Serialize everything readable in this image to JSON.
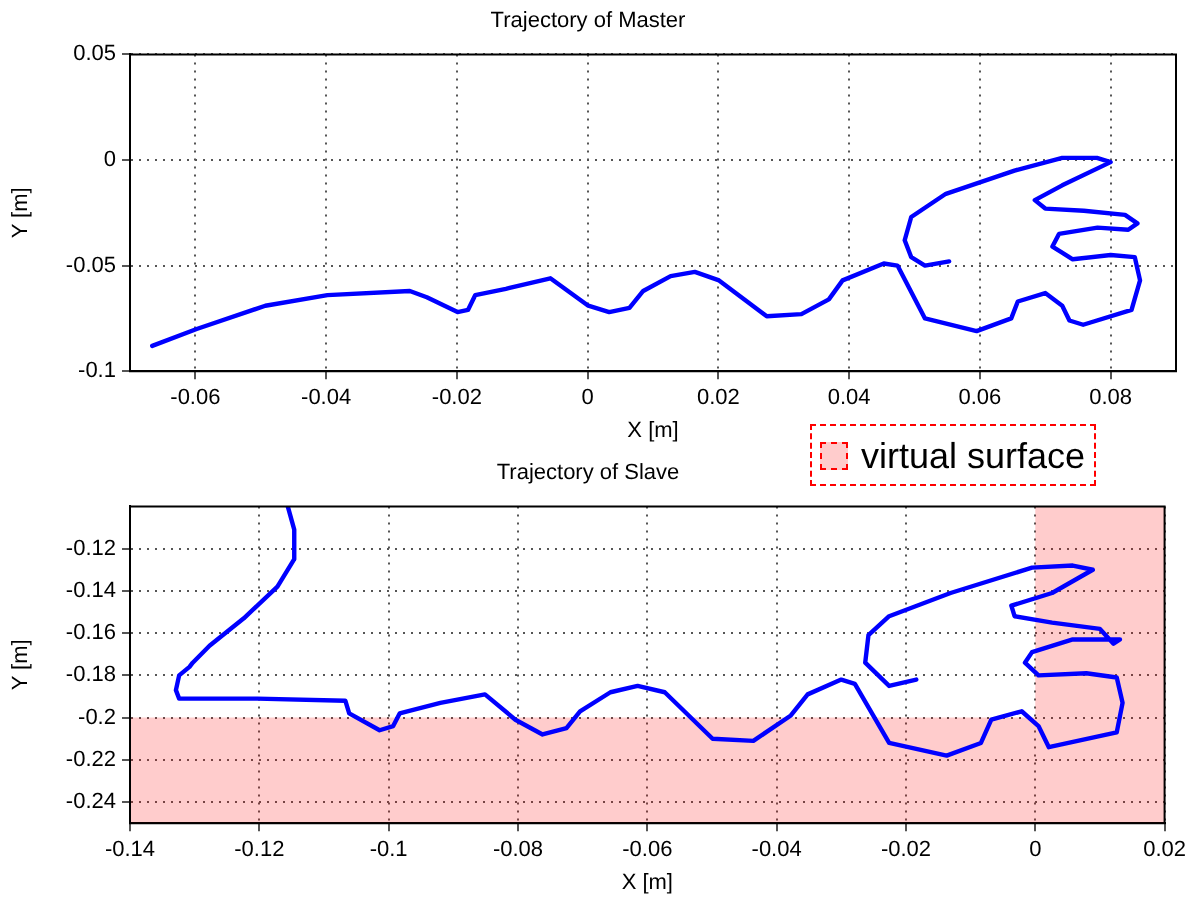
{
  "chart_data": [
    {
      "type": "line",
      "title": "Trajectory of Master",
      "xlabel": "X [m]",
      "ylabel": "Y [m]",
      "xlim": [
        -0.07,
        0.09
      ],
      "ylim": [
        -0.1,
        0.05
      ],
      "xticks": [
        -0.06,
        -0.04,
        -0.02,
        0,
        0.02,
        0.04,
        0.06,
        0.08
      ],
      "yticks": [
        -0.1,
        -0.05,
        0,
        0.05
      ],
      "grid": true,
      "marker": "none",
      "line_style": "solid",
      "series": [
        {
          "color": "#0000ff",
          "x": [
            -0.0666,
            -0.0598,
            -0.0493,
            -0.0398,
            -0.0272,
            -0.0246,
            -0.0199,
            -0.0183,
            -0.0172,
            -0.0125,
            -0.0057,
            0.0001,
            0.0033,
            0.0064,
            0.0085,
            0.0127,
            0.0164,
            0.0201,
            0.0274,
            0.0327,
            0.0369,
            0.039,
            0.0453,
            0.0474,
            0.0516,
            0.0595,
            0.0648,
            0.0658,
            0.07,
            0.0726,
            0.0737,
            0.0758,
            0.0832,
            0.0845,
            0.0837,
            0.08,
            0.0742,
            0.0711,
            0.0721,
            0.078,
            0.0827,
            0.0841,
            0.0822,
            0.0759,
            0.07,
            0.0684,
            0.0726,
            0.08,
            0.0779,
            0.0726,
            0.0653,
            0.0548,
            0.0495,
            0.0485,
            0.0495,
            0.0516,
            0.0553
          ],
          "values": [
            -0.088,
            -0.08,
            -0.069,
            -0.064,
            -0.062,
            -0.065,
            -0.072,
            -0.071,
            -0.064,
            -0.061,
            -0.056,
            -0.069,
            -0.072,
            -0.07,
            -0.062,
            -0.055,
            -0.053,
            -0.057,
            -0.074,
            -0.073,
            -0.066,
            -0.057,
            -0.049,
            -0.05,
            -0.075,
            -0.081,
            -0.075,
            -0.067,
            -0.063,
            -0.069,
            -0.076,
            -0.078,
            -0.071,
            -0.057,
            -0.046,
            -0.045,
            -0.047,
            -0.041,
            -0.035,
            -0.032,
            -0.033,
            -0.03,
            -0.026,
            -0.024,
            -0.023,
            -0.019,
            -0.012,
            -0.001,
            0.001,
            0.001,
            -0.005,
            -0.016,
            -0.027,
            -0.038,
            -0.046,
            -0.05,
            -0.048
          ]
        }
      ]
    },
    {
      "type": "line",
      "title": "Trajectory of Slave",
      "xlabel": "X [m]",
      "ylabel": "Y [m]",
      "xlim": [
        -0.14,
        0.02
      ],
      "ylim": [
        -0.25,
        -0.1
      ],
      "xticks": [
        -0.14,
        -0.12,
        -0.1,
        -0.08,
        -0.06,
        -0.04,
        -0.02,
        0,
        0.02
      ],
      "yticks": [
        -0.24,
        -0.22,
        -0.2,
        -0.18,
        -0.16,
        -0.14,
        -0.12
      ],
      "grid": true,
      "marker": "none",
      "line_style": "solid",
      "bands": [
        {
          "axis": "y",
          "from": -0.25,
          "to": -0.2,
          "label": "virtual surface",
          "color": "#ff0000"
        },
        {
          "axis": "x",
          "from": 0,
          "to": 0.02,
          "color": "#ff0000"
        }
      ],
      "series": [
        {
          "color": "#0000ff",
          "x": [
            -0.1156,
            -0.1146,
            -0.1146,
            -0.1172,
            -0.1224,
            -0.1277,
            -0.1303,
            -0.1308,
            -0.1324,
            -0.1329,
            -0.1324,
            -0.1203,
            -0.1067,
            -0.1061,
            -0.1014,
            -0.0993,
            -0.0983,
            -0.092,
            -0.0851,
            -0.0804,
            -0.0762,
            -0.0725,
            -0.0704,
            -0.0657,
            -0.0615,
            -0.0573,
            -0.0499,
            -0.0436,
            -0.0378,
            -0.0352,
            -0.03,
            -0.0279,
            -0.0226,
            -0.0137,
            -0.0084,
            -0.0068,
            -0.0021,
            0.0005,
            0.0021,
            0.0126,
            0.0135,
            0.0126,
            0.0079,
            0.0005,
            -0.0016,
            -0.0005,
            0.0058,
            0.0131,
            0.0121,
            0.01,
            0.0026,
            -0.0032,
            -0.0037,
            0.0026,
            0.0089,
            0.0058,
            -0.0005,
            -0.0131,
            -0.0226,
            -0.0258,
            -0.0263,
            -0.0226,
            -0.0184
          ],
          "values": [
            -0.1,
            -0.111,
            -0.125,
            -0.138,
            -0.153,
            -0.166,
            -0.174,
            -0.176,
            -0.18,
            -0.187,
            -0.191,
            -0.191,
            -0.192,
            -0.198,
            -0.206,
            -0.204,
            -0.198,
            -0.193,
            -0.189,
            -0.201,
            -0.208,
            -0.205,
            -0.197,
            -0.188,
            -0.185,
            -0.188,
            -0.21,
            -0.211,
            -0.199,
            -0.189,
            -0.182,
            -0.184,
            -0.212,
            -0.218,
            -0.212,
            -0.201,
            -0.197,
            -0.204,
            -0.214,
            -0.207,
            -0.193,
            -0.181,
            -0.179,
            -0.18,
            -0.174,
            -0.169,
            -0.163,
            -0.163,
            -0.165,
            -0.158,
            -0.155,
            -0.152,
            -0.147,
            -0.141,
            -0.13,
            -0.128,
            -0.129,
            -0.141,
            -0.152,
            -0.161,
            -0.174,
            -0.185,
            -0.182
          ]
        }
      ]
    }
  ]
}
